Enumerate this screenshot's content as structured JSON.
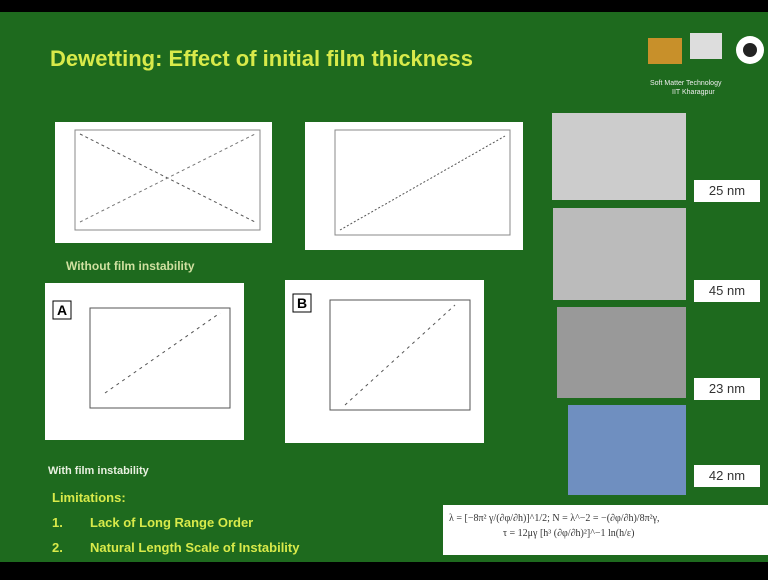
{
  "header": {
    "title": "Dewetting: Effect of initial film thickness",
    "logo_text": [
      "Soft Matter Technology",
      "IIT Kharagpur"
    ]
  },
  "captions": {
    "without": "Without film instability",
    "with": "With film instability"
  },
  "panels": [
    "A",
    "B"
  ],
  "thickness_labels": [
    "25 nm",
    "45 nm",
    "23 nm",
    "42 nm"
  ],
  "limitations": {
    "heading": "Limitations:",
    "items": [
      {
        "number": "1.",
        "text": "Lack of Long Range Order"
      },
      {
        "number": "2.",
        "text": "Natural Length Scale of Instability"
      }
    ]
  },
  "formula": [
    "λ = [−8π² γ/(∂φ/∂h)]^1/2; N = λ^−2 = −(∂φ/∂h)/8π²γ,",
    "τ = 12μγ [h³ (∂φ/∂h)²]^−1 ln(h/ε)"
  ]
}
